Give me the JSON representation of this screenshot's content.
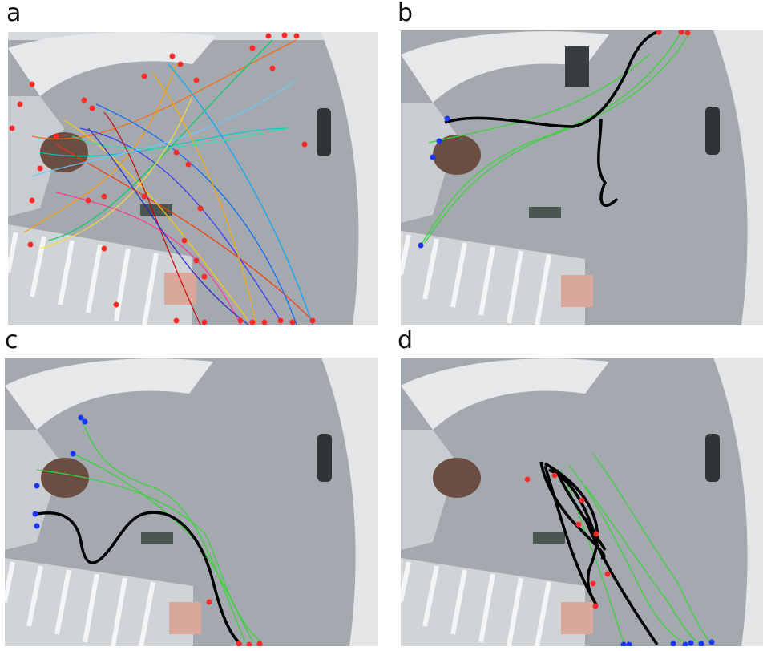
{
  "panels": [
    {
      "label": "a"
    },
    {
      "label": "b"
    },
    {
      "label": "c"
    },
    {
      "label": "d"
    }
  ],
  "colors": {
    "floor": "#a3a9ae",
    "wall": "#e6e8ea",
    "start_marker": "#ff2a2a",
    "end_marker": "#1a35ff",
    "highlight_track": "#000000",
    "cluster_track": "#3cd23c"
  }
}
